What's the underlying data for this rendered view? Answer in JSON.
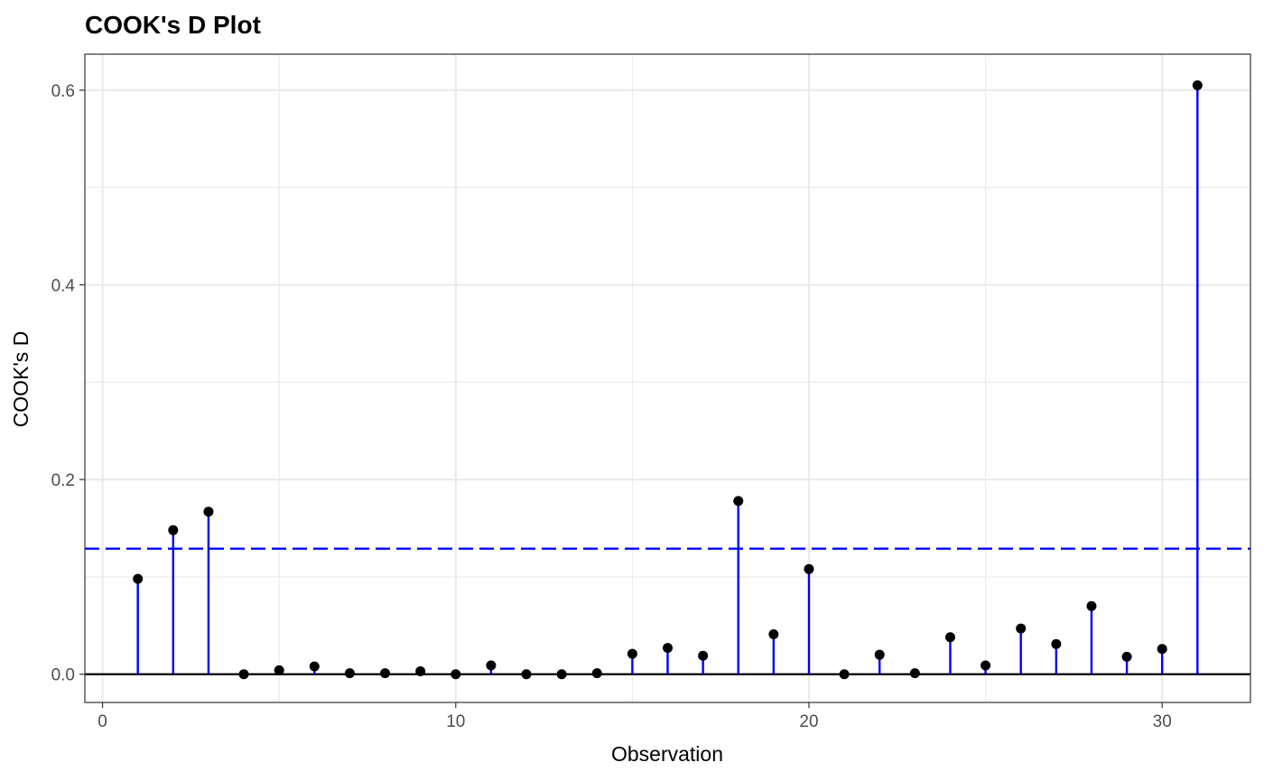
{
  "chart_data": {
    "type": "scatter",
    "title": "COOK's D Plot",
    "xlabel": "Observation",
    "ylabel": "COOK's D",
    "xlim": [
      -0.5,
      32.5
    ],
    "ylim": [
      -0.029,
      0.637
    ],
    "x_ticks": [
      0,
      10,
      20,
      30
    ],
    "y_ticks": [
      0.0,
      0.2,
      0.4,
      0.6
    ],
    "x_tick_labels": [
      "0",
      "10",
      "20",
      "30"
    ],
    "y_tick_labels": [
      "0.0",
      "0.2",
      "0.4",
      "0.6"
    ],
    "grid": true,
    "legend": "none",
    "threshold": 0.129,
    "colors": {
      "stem": "#0000FF",
      "threshold": "#0000FF",
      "point": "#000000",
      "baseline": "#000000",
      "grid": "#EBEBEB",
      "panel_border": "#333333"
    },
    "x": [
      1,
      2,
      3,
      4,
      5,
      6,
      7,
      8,
      9,
      10,
      11,
      12,
      13,
      14,
      15,
      16,
      17,
      18,
      19,
      20,
      21,
      22,
      23,
      24,
      25,
      26,
      27,
      28,
      29,
      30,
      31
    ],
    "values": [
      0.098,
      0.148,
      0.167,
      0.0,
      0.004,
      0.008,
      0.001,
      0.001,
      0.003,
      0.0,
      0.009,
      0.0,
      0.0,
      0.001,
      0.021,
      0.027,
      0.019,
      0.178,
      0.041,
      0.108,
      0.0,
      0.02,
      0.001,
      0.038,
      0.009,
      0.047,
      0.031,
      0.07,
      0.018,
      0.026,
      0.605
    ]
  }
}
